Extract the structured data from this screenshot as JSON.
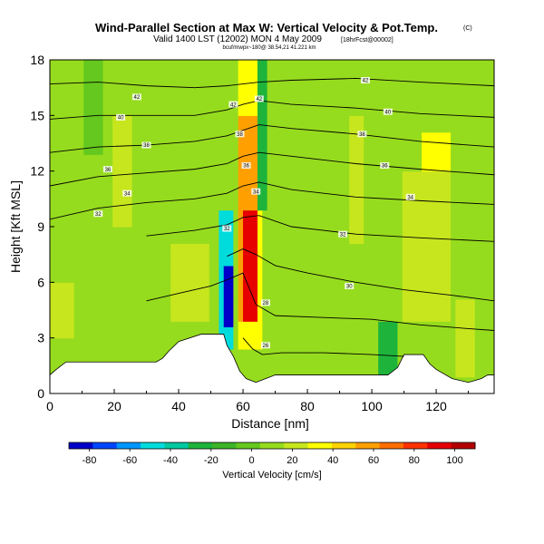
{
  "title": "Wind-Parallel Section at Max W: Vertical Velocity & Pot.Temp.",
  "title_mark": "(C)",
  "subtitle": "Valid 1400 LST (12002) MON 4 May 2009",
  "subtitle_note": "[18hrFcst@00002]",
  "info_line": "bcuf/mwpx~180@ 38.54,21 41.221 km",
  "chart_data": {
    "type": "heatmap",
    "xlabel": "Distance [nm]",
    "ylabel": "Height [Kft MSL]",
    "xlim": [
      0,
      138
    ],
    "ylim": [
      0,
      18
    ],
    "xticks": [
      0,
      20,
      40,
      60,
      80,
      100,
      120
    ],
    "yticks": [
      0,
      3,
      6,
      9,
      12,
      15,
      18
    ],
    "colorbar": {
      "label": "Vertical Velocity [cm/s]",
      "range": [
        -90,
        110
      ],
      "ticks": [
        -80,
        -60,
        -40,
        -20,
        0,
        20,
        40,
        60,
        80,
        100
      ],
      "colors": [
        "#0000c8",
        "#0046ff",
        "#0096ff",
        "#00dcdc",
        "#00c8a0",
        "#1eb43c",
        "#3cb428",
        "#64c81e",
        "#96dc1e",
        "#c8e61e",
        "#ffff00",
        "#ffd200",
        "#ffa000",
        "#ff6e00",
        "#ff3200",
        "#e60000",
        "#b40000"
      ]
    },
    "background_field": {
      "x": [
        0,
        138
      ],
      "y": [
        0,
        18
      ],
      "value": 10
    },
    "features": [
      {
        "x": [
          58,
          66
        ],
        "y": [
          2.5,
          18
        ],
        "value": 35
      },
      {
        "x": [
          59,
          65
        ],
        "y": [
          4,
          15
        ],
        "value": 60
      },
      {
        "x": [
          60,
          64
        ],
        "y": [
          4,
          10
        ],
        "value": 95
      },
      {
        "x": [
          53,
          57
        ],
        "y": [
          2.5,
          10
        ],
        "value": -50
      },
      {
        "x": [
          54,
          57
        ],
        "y": [
          3.5,
          7
        ],
        "value": -85
      },
      {
        "x": [
          64,
          67
        ],
        "y": [
          10,
          18
        ],
        "value": -25
      },
      {
        "x": [
          115,
          124
        ],
        "y": [
          5,
          14
        ],
        "value": 35
      },
      {
        "x": [
          110,
          125
        ],
        "y": [
          4,
          12
        ],
        "value": 22
      },
      {
        "x": [
          0,
          8
        ],
        "y": [
          3,
          6
        ],
        "value": 22
      },
      {
        "x": [
          38,
          50
        ],
        "y": [
          4,
          8
        ],
        "value": 22
      },
      {
        "x": [
          102,
          108
        ],
        "y": [
          1,
          4
        ],
        "value": -30
      },
      {
        "x": [
          93,
          98
        ],
        "y": [
          8,
          15
        ],
        "value": 22
      },
      {
        "x": [
          126,
          132
        ],
        "y": [
          1,
          5
        ],
        "value": 25
      },
      {
        "x": [
          20,
          26
        ],
        "y": [
          9,
          15
        ],
        "value": 22
      },
      {
        "x": [
          10,
          16
        ],
        "y": [
          13,
          18
        ],
        "value": 0
      }
    ],
    "terrain": [
      [
        0,
        1.0
      ],
      [
        2,
        1.3
      ],
      [
        5,
        1.7
      ],
      [
        10,
        1.7
      ],
      [
        22,
        1.7
      ],
      [
        33,
        1.7
      ],
      [
        35,
        1.9
      ],
      [
        37,
        2.3
      ],
      [
        40,
        2.8
      ],
      [
        47,
        3.2
      ],
      [
        54,
        3.2
      ],
      [
        55,
        2.6
      ],
      [
        57,
        2.0
      ],
      [
        59,
        1.2
      ],
      [
        61,
        0.8
      ],
      [
        64,
        0.6
      ],
      [
        67,
        0.8
      ],
      [
        70,
        1.0
      ],
      [
        100,
        1.0
      ],
      [
        105,
        1.0
      ],
      [
        108,
        1.4
      ],
      [
        110,
        2.1
      ],
      [
        116,
        2.1
      ],
      [
        118,
        1.6
      ],
      [
        120,
        1.3
      ],
      [
        125,
        0.8
      ],
      [
        130,
        0.6
      ],
      [
        134,
        0.8
      ],
      [
        136,
        1.0
      ],
      [
        138,
        1.0
      ]
    ],
    "theta_contours": [
      {
        "label": "42",
        "x": [
          0,
          15,
          30,
          45,
          55,
          60,
          65,
          75,
          95,
          115,
          138
        ],
        "y": [
          16.7,
          16.8,
          16.6,
          16.5,
          16.6,
          16.7,
          16.8,
          16.9,
          17.0,
          16.8,
          16.6
        ]
      },
      {
        "label": "40",
        "x": [
          0,
          15,
          30,
          45,
          55,
          60,
          65,
          75,
          95,
          115,
          138
        ],
        "y": [
          14.8,
          15.0,
          15.0,
          15.0,
          15.3,
          15.6,
          15.8,
          15.6,
          15.4,
          15.1,
          14.9
        ]
      },
      {
        "label": "38",
        "x": [
          0,
          15,
          30,
          45,
          55,
          60,
          65,
          75,
          95,
          115,
          138
        ],
        "y": [
          13.0,
          13.3,
          13.4,
          13.6,
          13.9,
          14.2,
          14.5,
          14.3,
          14.0,
          13.6,
          13.3
        ]
      },
      {
        "label": "36",
        "x": [
          0,
          15,
          30,
          45,
          55,
          60,
          65,
          75,
          95,
          115,
          138
        ],
        "y": [
          11.2,
          11.7,
          11.9,
          12.1,
          12.4,
          12.8,
          13.0,
          12.8,
          12.4,
          12.1,
          11.8
        ]
      },
      {
        "label": "34",
        "x": [
          0,
          15,
          30,
          45,
          55,
          60,
          65,
          75,
          95,
          115,
          138
        ],
        "y": [
          9.4,
          10.0,
          10.3,
          10.5,
          10.8,
          11.2,
          11.4,
          11.0,
          10.6,
          10.4,
          10.2
        ]
      },
      {
        "label": "32",
        "x": [
          30,
          45,
          55,
          60,
          65,
          75,
          95,
          115,
          138
        ],
        "y": [
          8.5,
          8.8,
          9.1,
          9.5,
          9.6,
          9.0,
          8.6,
          8.4,
          8.2
        ]
      },
      {
        "label": "30",
        "x": [
          55,
          60,
          64,
          70,
          80,
          95,
          110,
          125,
          138
        ],
        "y": [
          7.4,
          7.8,
          7.5,
          6.9,
          6.5,
          6.0,
          5.6,
          5.3,
          5.0
        ]
      },
      {
        "label": "28",
        "x": [
          30,
          40,
          50,
          56,
          60,
          64,
          70,
          85,
          100,
          115,
          130,
          138
        ],
        "y": [
          5.0,
          5.4,
          5.8,
          6.2,
          6.5,
          4.8,
          4.2,
          4.1,
          4.0,
          3.7,
          3.5,
          3.4
        ]
      },
      {
        "label": "26",
        "x": [
          60,
          63,
          66,
          72,
          85,
          100,
          110
        ],
        "y": [
          3.0,
          2.4,
          2.1,
          2.2,
          2.2,
          2.1,
          2.0
        ]
      }
    ],
    "contour_labels": [
      {
        "text": "42",
        "x": 27,
        "y": 16.0
      },
      {
        "text": "42",
        "x": 57,
        "y": 15.6
      },
      {
        "text": "42",
        "x": 65,
        "y": 15.9
      },
      {
        "text": "42",
        "x": 98,
        "y": 16.9
      },
      {
        "text": "40",
        "x": 22,
        "y": 14.9
      },
      {
        "text": "40",
        "x": 105,
        "y": 15.2
      },
      {
        "text": "38",
        "x": 30,
        "y": 13.4
      },
      {
        "text": "38",
        "x": 59,
        "y": 14.0
      },
      {
        "text": "38",
        "x": 97,
        "y": 14.0
      },
      {
        "text": "36",
        "x": 18,
        "y": 12.1
      },
      {
        "text": "36",
        "x": 61,
        "y": 12.3
      },
      {
        "text": "36",
        "x": 104,
        "y": 12.3
      },
      {
        "text": "34",
        "x": 24,
        "y": 10.8
      },
      {
        "text": "34",
        "x": 64,
        "y": 10.9
      },
      {
        "text": "34",
        "x": 112,
        "y": 10.6
      },
      {
        "text": "32",
        "x": 15,
        "y": 9.7
      },
      {
        "text": "32",
        "x": 55,
        "y": 8.9
      },
      {
        "text": "32",
        "x": 91,
        "y": 8.6
      },
      {
        "text": "30",
        "x": 93,
        "y": 5.8
      },
      {
        "text": "28",
        "x": 67,
        "y": 4.9
      },
      {
        "text": "26",
        "x": 67,
        "y": 2.6
      }
    ]
  }
}
